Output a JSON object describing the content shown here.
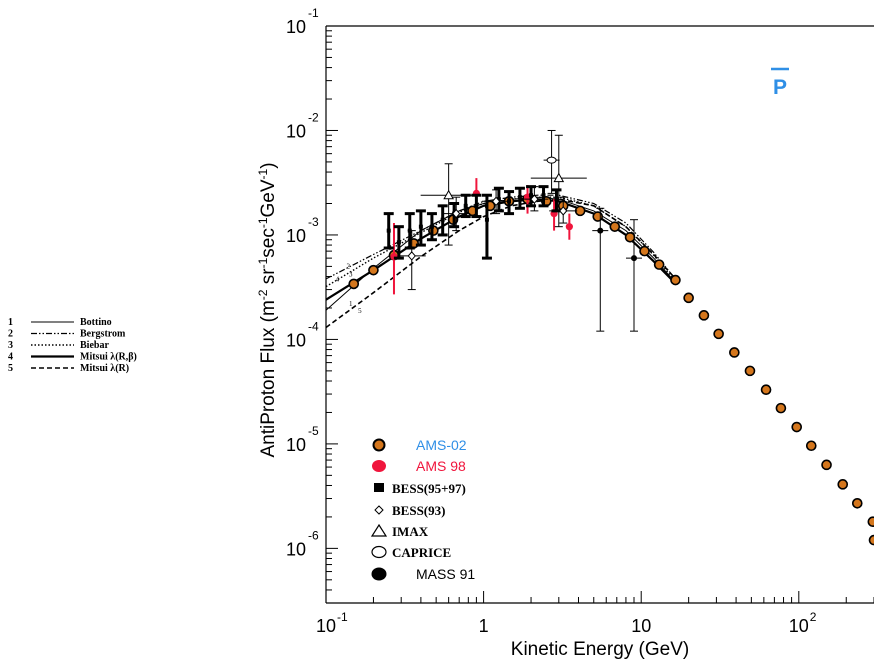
{
  "chart_data": {
    "type": "scatter",
    "title": "P",
    "xlabel": "Kinetic Energy (GeV)",
    "ylabel_parts": [
      "AntiProton Flux (m",
      "-2",
      " sr",
      "-1",
      "sec",
      "-1",
      "GeV",
      "-1",
      ")"
    ],
    "xscale": "log",
    "yscale": "log",
    "xlim": [
      0.1,
      300
    ],
    "ylim": [
      3e-07,
      0.1
    ],
    "x_ticks": [
      {
        "value": 0.1,
        "base": "10",
        "exp": "-1"
      },
      {
        "value": 1,
        "base": "1",
        "exp": ""
      },
      {
        "value": 10,
        "base": "10",
        "exp": ""
      },
      {
        "value": 100,
        "base": "10",
        "exp": "2"
      }
    ],
    "y_ticks": [
      {
        "value": 0.1,
        "base": "10",
        "exp": "-1"
      },
      {
        "value": 0.01,
        "base": "10",
        "exp": "-2"
      },
      {
        "value": 0.001,
        "base": "10",
        "exp": "-3"
      },
      {
        "value": 0.0001,
        "base": "10",
        "exp": "-4"
      },
      {
        "value": 1e-05,
        "base": "10",
        "exp": "-5"
      },
      {
        "value": 1e-06,
        "base": "10",
        "exp": "-6"
      }
    ],
    "series": [
      {
        "name": "AMS-02",
        "color": "#d4761c",
        "marker": "circle-orange",
        "points": [
          [
            0.15,
            0.00034
          ],
          [
            0.2,
            0.00046
          ],
          [
            0.27,
            0.00064
          ],
          [
            0.36,
            0.00083
          ],
          [
            0.48,
            0.0011
          ],
          [
            0.64,
            0.0014
          ],
          [
            0.85,
            0.0017
          ],
          [
            1.1,
            0.0019
          ],
          [
            1.45,
            0.0021
          ],
          [
            1.9,
            0.0022
          ],
          [
            2.5,
            0.0021
          ],
          [
            3.2,
            0.0019
          ],
          [
            4.1,
            0.0017
          ],
          [
            5.3,
            0.0015
          ],
          [
            6.8,
            0.0012
          ],
          [
            8.5,
            0.00095
          ],
          [
            10.5,
            0.0007
          ],
          [
            13,
            0.00052
          ],
          [
            16.5,
            0.00037
          ],
          [
            20,
            0.00025
          ],
          [
            25,
            0.00017
          ],
          [
            31,
            0.000113
          ],
          [
            39,
            7.5e-05
          ],
          [
            49,
            5e-05
          ],
          [
            62,
            3.3e-05
          ],
          [
            77,
            2.2e-05
          ],
          [
            97,
            1.45e-05
          ],
          [
            120,
            9.6e-06
          ],
          [
            150,
            6.3e-06
          ],
          [
            190,
            4.1e-06
          ],
          [
            235,
            2.7e-06
          ],
          [
            295,
            1.8e-06
          ],
          [
            300,
            1.2e-06
          ]
        ]
      },
      {
        "name": "AMS 98",
        "color": "#f0153c",
        "marker": "circle-red",
        "points": [
          [
            0.27,
            0.00062
          ],
          [
            0.9,
            0.0025
          ],
          [
            1.9,
            0.0023
          ],
          [
            2.8,
            0.0016
          ],
          [
            3.5,
            0.0012
          ]
        ],
        "errors": [
          [
            0.00027,
            0.0013
          ],
          [
            0.0017,
            0.0035
          ],
          [
            0.0016,
            0.003
          ],
          [
            0.0011,
            0.0022
          ],
          [
            0.0009,
            0.0016
          ]
        ]
      },
      {
        "name": "BESS(95+97)",
        "color": "#000000",
        "marker": "bar",
        "points": [
          [
            0.25,
            0.0011
          ],
          [
            0.29,
            0.00085
          ],
          [
            0.34,
            0.0011
          ],
          [
            0.4,
            0.0012
          ],
          [
            0.47,
            0.0012
          ],
          [
            0.55,
            0.0014
          ],
          [
            0.65,
            0.0016
          ],
          [
            0.77,
            0.0019
          ],
          [
            0.9,
            0.0019
          ],
          [
            1.05,
            0.0014
          ],
          [
            1.25,
            0.0022
          ],
          [
            1.45,
            0.0021
          ],
          [
            1.7,
            0.0023
          ],
          [
            2.0,
            0.0024
          ],
          [
            2.4,
            0.0024
          ],
          [
            2.9,
            0.0022
          ]
        ],
        "errors": [
          [
            0.00075,
            0.0016
          ],
          [
            0.0006,
            0.0012
          ],
          [
            0.00075,
            0.0016
          ],
          [
            0.0008,
            0.0017
          ],
          [
            0.0009,
            0.0016
          ],
          [
            0.001,
            0.0019
          ],
          [
            0.0012,
            0.002
          ],
          [
            0.0015,
            0.0024
          ],
          [
            0.0015,
            0.0024
          ],
          [
            0.0006,
            0.0024
          ],
          [
            0.0017,
            0.0028
          ],
          [
            0.0016,
            0.0026
          ],
          [
            0.0018,
            0.0028
          ],
          [
            0.0019,
            0.0029
          ],
          [
            0.0019,
            0.0029
          ],
          [
            0.0017,
            0.0027
          ]
        ]
      },
      {
        "name": "BESS(93)",
        "color": "#000000",
        "marker": "diamond",
        "points": [
          [
            0.35,
            0.00063
          ],
          [
            0.67,
            0.0016
          ],
          [
            1.2,
            0.0021
          ],
          [
            2.1,
            0.0022
          ],
          [
            3.2,
            0.0017
          ]
        ],
        "errors": [
          [
            0.0003,
            0.0011
          ],
          [
            0.0011,
            0.0023
          ],
          [
            0.0016,
            0.0027
          ],
          [
            0.0017,
            0.0029
          ],
          [
            0.0013,
            0.0023
          ]
        ]
      },
      {
        "name": "IMAX",
        "color": "#000000",
        "marker": "triangle",
        "points": [
          [
            0.6,
            0.0024
          ],
          [
            3.0,
            0.0035
          ]
        ],
        "errors": [
          [
            0.0008,
            0.0048
          ],
          [
            0.0012,
            0.009
          ]
        ]
      },
      {
        "name": "CAPRICE",
        "color": "#000000",
        "marker": "ellipse",
        "points": [
          [
            2.7,
            0.0052
          ]
        ],
        "errors": [
          [
            0.0025,
            0.01
          ]
        ]
      },
      {
        "name": "MASS 91",
        "color": "#000000",
        "marker": "circle-black",
        "points": [
          [
            5.5,
            0.0011
          ],
          [
            9.0,
            0.0006
          ]
        ],
        "errors": [
          [
            0.00012,
            0.0018
          ],
          [
            0.00012,
            0.0014
          ]
        ]
      }
    ],
    "models": [
      {
        "id": "1",
        "name": "Bottino",
        "style": "solid-thin",
        "points": [
          [
            0.1,
            0.00019
          ],
          [
            0.2,
            0.00048
          ],
          [
            0.4,
            0.0011
          ],
          [
            0.7,
            0.0017
          ],
          [
            1.0,
            0.002
          ],
          [
            1.5,
            0.0022
          ],
          [
            2.2,
            0.0023
          ],
          [
            3.0,
            0.0022
          ],
          [
            5,
            0.0017
          ],
          [
            8,
            0.0011
          ],
          [
            12,
            0.0006
          ],
          [
            16,
            0.00037
          ]
        ]
      },
      {
        "id": "2",
        "name": "Bergstrom",
        "style": "dashdot",
        "points": [
          [
            0.1,
            0.00038
          ],
          [
            0.2,
            0.00065
          ],
          [
            0.4,
            0.0011
          ],
          [
            0.7,
            0.0017
          ],
          [
            1.0,
            0.0021
          ],
          [
            1.5,
            0.0023
          ],
          [
            2.2,
            0.0024
          ],
          [
            3.0,
            0.0024
          ],
          [
            5,
            0.002
          ],
          [
            8,
            0.0013
          ],
          [
            12,
            0.00068
          ],
          [
            16,
            0.0004
          ]
        ]
      },
      {
        "id": "3",
        "name": "Biebar",
        "style": "dotted",
        "points": [
          [
            0.1,
            0.00032
          ],
          [
            0.2,
            0.0006
          ],
          [
            0.4,
            0.00105
          ],
          [
            0.7,
            0.00165
          ],
          [
            1.0,
            0.002
          ],
          [
            1.5,
            0.0022
          ],
          [
            2.2,
            0.0023
          ],
          [
            3.0,
            0.0023
          ],
          [
            5,
            0.0019
          ],
          [
            8,
            0.0012
          ],
          [
            12,
            0.00064
          ],
          [
            16,
            0.00038
          ]
        ]
      },
      {
        "id": "4",
        "name": "Mitsui λ(R,β)",
        "style": "solid-thick",
        "points": [
          [
            0.1,
            0.00024
          ],
          [
            0.2,
            0.00046
          ],
          [
            0.4,
            0.00092
          ],
          [
            0.7,
            0.0015
          ],
          [
            1.0,
            0.0019
          ],
          [
            1.5,
            0.0021
          ],
          [
            2.2,
            0.0022
          ],
          [
            3.0,
            0.0021
          ],
          [
            5,
            0.0016
          ],
          [
            8,
            0.001
          ],
          [
            12,
            0.00056
          ],
          [
            16,
            0.00036
          ]
        ]
      },
      {
        "id": "5",
        "name": "Mitsui λ(R)",
        "style": "dashed",
        "points": [
          [
            0.1,
            0.00013
          ],
          [
            0.2,
            0.00028
          ],
          [
            0.4,
            0.00062
          ],
          [
            0.7,
            0.0011
          ],
          [
            1.0,
            0.0015
          ],
          [
            1.5,
            0.0019
          ],
          [
            2.2,
            0.0021
          ],
          [
            3.0,
            0.0022
          ],
          [
            5,
            0.0019
          ],
          [
            8,
            0.0012
          ],
          [
            12,
            0.00065
          ],
          [
            16,
            0.0004
          ]
        ]
      }
    ],
    "model_curve_tags": [
      "2",
      "3",
      "4",
      "1",
      "5"
    ],
    "grid": false,
    "legend_position": "bottom-left inside plot",
    "model_legend_position": "left, outside plot"
  }
}
